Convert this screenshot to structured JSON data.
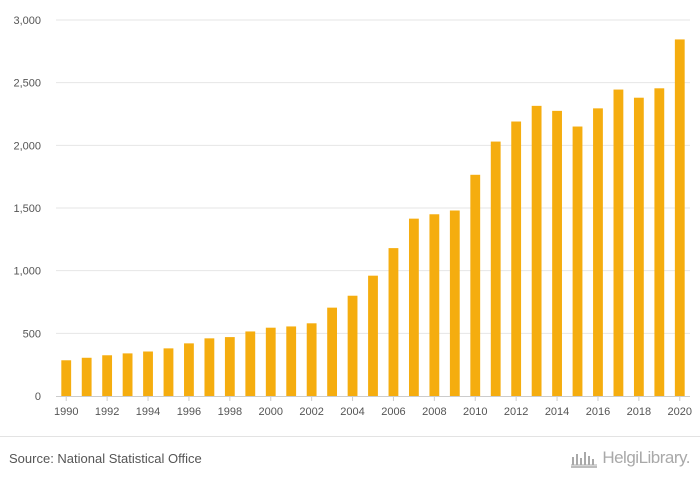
{
  "chart_data": {
    "type": "bar",
    "categories": [
      "1990",
      "1991",
      "1992",
      "1993",
      "1994",
      "1995",
      "1996",
      "1997",
      "1998",
      "1999",
      "2000",
      "2001",
      "2002",
      "2003",
      "2004",
      "2005",
      "2006",
      "2007",
      "2008",
      "2009",
      "2010",
      "2011",
      "2012",
      "2013",
      "2014",
      "2015",
      "2016",
      "2017",
      "2018",
      "2019",
      "2020"
    ],
    "x_tick_labels": [
      "1990",
      "1992",
      "1994",
      "1996",
      "1998",
      "2000",
      "2002",
      "2004",
      "2006",
      "2008",
      "2010",
      "2012",
      "2014",
      "2016",
      "2018",
      "2020"
    ],
    "values": [
      285,
      305,
      325,
      340,
      355,
      380,
      420,
      460,
      470,
      515,
      545,
      555,
      580,
      705,
      800,
      960,
      1180,
      1415,
      1450,
      1480,
      1765,
      2030,
      2190,
      2315,
      2275,
      2150,
      2295,
      2445,
      2380,
      2455,
      2845
    ],
    "ylim": [
      0,
      3000
    ],
    "y_ticks": [
      0,
      500,
      1000,
      1500,
      2000,
      2500,
      3000
    ],
    "y_tick_labels": [
      "0",
      "500",
      "1,000",
      "1,500",
      "2,000",
      "2,500",
      "3,000"
    ],
    "title": "",
    "xlabel": "",
    "ylabel": "",
    "grid": true,
    "bar_color": "#f5ad0f"
  },
  "footer": {
    "source": "Source: National Statistical Office",
    "brand": "HelgiLibrary."
  },
  "colors": {
    "bar": "#f5ad0f",
    "grid": "#e6e6e6",
    "text": "#555555",
    "brand": "#a9a9a9"
  }
}
